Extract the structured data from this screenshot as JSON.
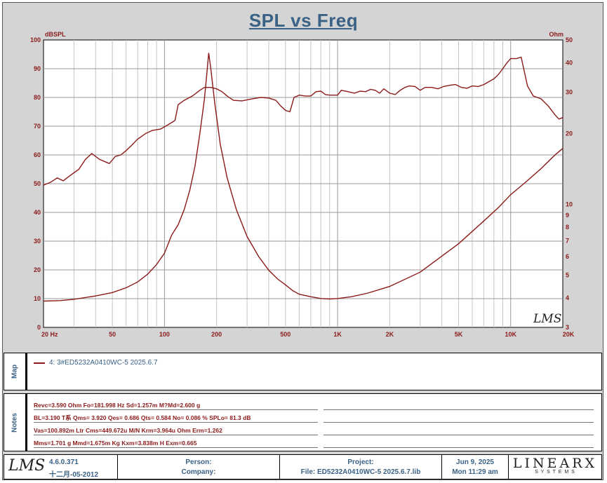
{
  "title": "SPL vs Freq",
  "chart_data": {
    "type": "line",
    "title": "SPL vs Freq",
    "xscale": "log",
    "xlim": [
      20,
      20000
    ],
    "ylim": [
      0,
      100
    ],
    "ylim_right": [
      3,
      50
    ],
    "ylabel": "dBSPL",
    "ylabel_right": "Ohm",
    "x_ticks": [
      {
        "v": 20,
        "label": "20  Hz"
      },
      {
        "v": 50,
        "label": "50"
      },
      {
        "v": 100,
        "label": "100"
      },
      {
        "v": 200,
        "label": "200"
      },
      {
        "v": 500,
        "label": "500"
      },
      {
        "v": 1000,
        "label": "1K"
      },
      {
        "v": 2000,
        "label": "2K"
      },
      {
        "v": 5000,
        "label": "5K"
      },
      {
        "v": 10000,
        "label": "10K"
      },
      {
        "v": 20000,
        "label": "20K"
      }
    ],
    "y_ticks": [
      0,
      10,
      20,
      30,
      40,
      50,
      60,
      70,
      80,
      90,
      100
    ],
    "y_ticks_right": [
      3,
      4,
      5,
      6,
      7,
      8,
      9,
      10,
      20,
      30,
      40,
      50
    ],
    "grid": true,
    "series": [
      {
        "name": "4: 3#ED5232A0410WC-5  2025.6.7",
        "axis": "left",
        "color": "#8b1a1a",
        "points": [
          [
            20,
            49.5
          ],
          [
            22,
            50.5
          ],
          [
            24,
            52
          ],
          [
            26,
            51
          ],
          [
            28,
            52.5
          ],
          [
            32,
            55
          ],
          [
            35,
            58.5
          ],
          [
            38,
            60.5
          ],
          [
            42,
            58.5
          ],
          [
            46,
            57.5
          ],
          [
            48,
            57
          ],
          [
            52,
            59.5
          ],
          [
            56,
            60
          ],
          [
            60,
            61.5
          ],
          [
            65,
            63.5
          ],
          [
            70,
            65.5
          ],
          [
            78,
            67.5
          ],
          [
            85,
            68.5
          ],
          [
            95,
            69
          ],
          [
            105,
            70.5
          ],
          [
            115,
            72
          ],
          [
            120,
            77.5
          ],
          [
            130,
            79
          ],
          [
            145,
            80.5
          ],
          [
            160,
            82.5
          ],
          [
            170,
            83.5
          ],
          [
            185,
            83.5
          ],
          [
            200,
            83
          ],
          [
            215,
            82
          ],
          [
            230,
            80.5
          ],
          [
            250,
            79
          ],
          [
            280,
            78.8
          ],
          [
            320,
            79.5
          ],
          [
            360,
            80
          ],
          [
            400,
            79.8
          ],
          [
            440,
            79
          ],
          [
            470,
            77
          ],
          [
            500,
            75.5
          ],
          [
            530,
            75
          ],
          [
            560,
            80
          ],
          [
            600,
            80.8
          ],
          [
            650,
            80.5
          ],
          [
            700,
            80.5
          ],
          [
            750,
            82
          ],
          [
            800,
            82.2
          ],
          [
            850,
            81
          ],
          [
            900,
            80.8
          ],
          [
            1000,
            80.8
          ],
          [
            1050,
            82.5
          ],
          [
            1150,
            82
          ],
          [
            1250,
            81.5
          ],
          [
            1350,
            82.2
          ],
          [
            1450,
            82
          ],
          [
            1550,
            82.8
          ],
          [
            1650,
            82.5
          ],
          [
            1750,
            81.5
          ],
          [
            1850,
            83
          ],
          [
            2000,
            81.5
          ],
          [
            2150,
            81
          ],
          [
            2300,
            82.5
          ],
          [
            2450,
            83.5
          ],
          [
            2600,
            84
          ],
          [
            2800,
            83.8
          ],
          [
            3000,
            82.5
          ],
          [
            3200,
            83.5
          ],
          [
            3500,
            83.5
          ],
          [
            3800,
            83
          ],
          [
            4100,
            83.8
          ],
          [
            4500,
            84.3
          ],
          [
            4800,
            84.5
          ],
          [
            5200,
            83.5
          ],
          [
            5600,
            83.2
          ],
          [
            6000,
            84
          ],
          [
            6500,
            83.8
          ],
          [
            7000,
            84.5
          ],
          [
            7500,
            85.5
          ],
          [
            8000,
            86.5
          ],
          [
            8500,
            88
          ],
          [
            9000,
            90
          ],
          [
            9500,
            92
          ],
          [
            10000,
            93.5
          ],
          [
            10800,
            93.5
          ],
          [
            11500,
            94
          ],
          [
            12500,
            84
          ],
          [
            13500,
            80.5
          ],
          [
            15000,
            79.5
          ],
          [
            16500,
            77
          ],
          [
            18000,
            74
          ],
          [
            19000,
            72.5
          ],
          [
            20000,
            73
          ]
        ]
      },
      {
        "name": "impedance",
        "axis": "right",
        "color": "#8b1a1a",
        "points": [
          [
            20,
            3.88
          ],
          [
            25,
            3.9
          ],
          [
            30,
            3.95
          ],
          [
            40,
            4.08
          ],
          [
            50,
            4.22
          ],
          [
            60,
            4.42
          ],
          [
            70,
            4.68
          ],
          [
            80,
            5.05
          ],
          [
            90,
            5.55
          ],
          [
            100,
            6.2
          ],
          [
            110,
            7.4
          ],
          [
            120,
            8.2
          ],
          [
            130,
            9.5
          ],
          [
            140,
            11.5
          ],
          [
            150,
            14.5
          ],
          [
            160,
            20
          ],
          [
            170,
            28
          ],
          [
            175,
            35
          ],
          [
            180,
            44
          ],
          [
            185,
            38
          ],
          [
            195,
            27
          ],
          [
            210,
            18
          ],
          [
            230,
            13
          ],
          [
            260,
            9.5
          ],
          [
            300,
            7.3
          ],
          [
            350,
            6.0
          ],
          [
            400,
            5.25
          ],
          [
            450,
            4.82
          ],
          [
            500,
            4.55
          ],
          [
            550,
            4.3
          ],
          [
            600,
            4.15
          ],
          [
            700,
            4.05
          ],
          [
            800,
            3.98
          ],
          [
            900,
            3.96
          ],
          [
            1000,
            3.98
          ],
          [
            1200,
            4.05
          ],
          [
            1500,
            4.2
          ],
          [
            2000,
            4.48
          ],
          [
            3000,
            5.15
          ],
          [
            5000,
            6.8
          ],
          [
            7000,
            8.5
          ],
          [
            8500,
            9.7
          ],
          [
            10000,
            11
          ],
          [
            12000,
            12.3
          ],
          [
            15000,
            14.2
          ],
          [
            18000,
            16.2
          ],
          [
            20000,
            17.3
          ]
        ]
      }
    ]
  },
  "map_label": "Map",
  "legend_text": "4: 3#ED5232A0410WC-5  2025.6.7",
  "notes_label": "Notes",
  "notes": [
    "Revc=3.590 Ohm  Fo=181.998 Hz  Sd=1.257m M?Md=2.600 g",
    "BL=3.190 T系  Qms= 3.920  Qes= 0.686  Qts= 0.584  No= 0.086 %  SPLo= 81.3 dB",
    "Vas=100.892m Ltr  Cms=449.672u M/N  Krm=3.964u Ohm  Erm=1.262",
    "Mms=1.701 g  Mmd=1.675m Kg  Kxm=3.838m H  Exm=0.665"
  ],
  "watermark": "LMS",
  "footer": {
    "logo": "LMS",
    "version": "4.6.0.371",
    "build_date": "十二月-05-2012",
    "person_label": "Person:",
    "company_label": "Company:",
    "project_label": "Project:",
    "file": "File: ED5232A0410WC-5  2025.6.7.lib",
    "date": "Jun  9, 2025",
    "time": "Mon 11:29 am",
    "brand": "LINEARX",
    "brand_sub": "S  Y  S  T  E  M  S"
  }
}
